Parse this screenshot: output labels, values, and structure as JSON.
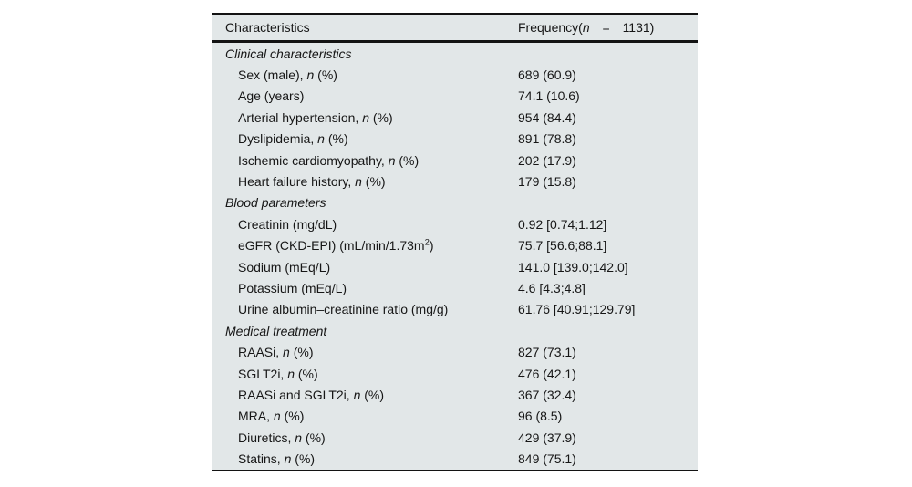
{
  "colors": {
    "page_background": "#ffffff",
    "table_background": "#e2e7e8",
    "rule_color": "#131313",
    "text_color": "#161616"
  },
  "table": {
    "header": {
      "col1": "Characteristics",
      "freq_pre": "Frequency(",
      "freq_n": "n",
      "freq_tail": " = 1131)"
    },
    "rows": [
      {
        "type": "section",
        "pre": "Clinical characteristics"
      },
      {
        "type": "item",
        "pre": "Sex (male), ",
        "it": "n",
        "tail": " (%)",
        "value": "689 (60.9)"
      },
      {
        "type": "item",
        "pre": "Age (years)",
        "value": "74.1 (10.6)"
      },
      {
        "type": "item",
        "pre": "Arterial hypertension, ",
        "it": "n",
        "tail": " (%)",
        "value": "954 (84.4)"
      },
      {
        "type": "item",
        "pre": "Dyslipidemia, ",
        "it": "n",
        "tail": " (%)",
        "value": "891 (78.8)"
      },
      {
        "type": "item",
        "pre": "Ischemic cardiomyopathy, ",
        "it": "n",
        "tail": " (%)",
        "value": "202 (17.9)"
      },
      {
        "type": "item",
        "pre": "Heart failure history, ",
        "it": "n",
        "tail": " (%)",
        "value": "179 (15.8)"
      },
      {
        "type": "section",
        "pre": "Blood parameters"
      },
      {
        "type": "item",
        "pre": "Creatinin (mg/dL)",
        "value": "0.92 [0.74;1.12]"
      },
      {
        "type": "item",
        "pre": "eGFR (CKD-EPI) (mL/min/1.73m",
        "sup": "2",
        "tail": ")",
        "value": "75.7 [56.6;88.1]"
      },
      {
        "type": "item",
        "pre": "Sodium (mEq/L)",
        "value": "141.0 [139.0;142.0]"
      },
      {
        "type": "item",
        "pre": "Potassium (mEq/L)",
        "value": "4.6 [4.3;4.8]"
      },
      {
        "type": "item",
        "pre": "Urine albumin–creatinine ratio (mg/g)",
        "value": "61.76 [40.91;129.79]"
      },
      {
        "type": "section",
        "pre": "Medical treatment"
      },
      {
        "type": "item",
        "pre": "RAASi, ",
        "it": "n",
        "tail": " (%)",
        "value": "827 (73.1)"
      },
      {
        "type": "item",
        "pre": "SGLT2i, ",
        "it": "n",
        "tail": " (%)",
        "value": "476 (42.1)"
      },
      {
        "type": "item",
        "pre": "RAASi and SGLT2i, ",
        "it": "n",
        "tail": " (%)",
        "value": "367 (32.4)"
      },
      {
        "type": "item",
        "pre": "MRA, ",
        "it": "n",
        "tail": " (%)",
        "value": "96 (8.5)"
      },
      {
        "type": "item",
        "pre": "Diuretics, ",
        "it": "n",
        "tail": " (%)",
        "value": "429 (37.9)"
      },
      {
        "type": "item",
        "pre": "Statins, ",
        "it": "n",
        "tail": " (%)",
        "value": "849 (75.1)"
      }
    ]
  }
}
